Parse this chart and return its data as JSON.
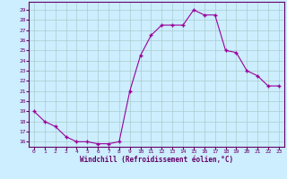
{
  "x": [
    0,
    1,
    2,
    3,
    4,
    5,
    6,
    7,
    8,
    9,
    10,
    11,
    12,
    13,
    14,
    15,
    16,
    17,
    18,
    19,
    20,
    21,
    22,
    23
  ],
  "y": [
    19,
    18,
    17.5,
    16.5,
    16,
    16,
    15.8,
    15.8,
    16,
    21,
    24.5,
    26.5,
    27.5,
    27.5,
    27.5,
    29,
    28.5,
    28.5,
    25,
    24.8,
    23,
    22.5,
    21.5,
    21.5
  ],
  "line_color": "#990099",
  "marker": "+",
  "bg_color": "#cceeff",
  "grid_color": "#aacccc",
  "xlabel": "Windchill (Refroidissement éolien,°C)",
  "xlabel_color": "#660066",
  "ylabel_ticks": [
    16,
    17,
    18,
    19,
    20,
    21,
    22,
    23,
    24,
    25,
    26,
    27,
    28,
    29
  ],
  "ylim": [
    15.5,
    29.8
  ],
  "xlim": [
    -0.5,
    23.5
  ],
  "tick_color": "#660066",
  "spine_color": "#660066"
}
